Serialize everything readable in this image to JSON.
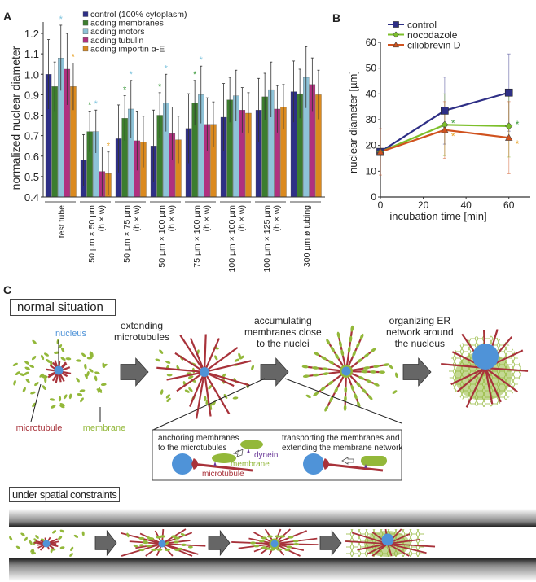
{
  "panels": {
    "a": "A",
    "b": "B",
    "c": "C"
  },
  "chart_data": [
    {
      "type": "bar",
      "panel": "A",
      "ylabel": "normalized nuclear diameter",
      "xlabel": "",
      "ylim": [
        0.4,
        1.25
      ],
      "yticks": [
        "0.4",
        "0.5",
        "0.6",
        "0.7",
        "0.8",
        "0.9",
        "1.0",
        "1.1",
        "1.2"
      ],
      "categories": [
        [
          "test tube"
        ],
        [
          "50 µm × 50 µm",
          "(h × w)"
        ],
        [
          "50 µm × 75 µm",
          "(h × w)"
        ],
        [
          "50 µm × 100 µm",
          "(h × w)"
        ],
        [
          "75 µm × 100 µm",
          "(h × w)"
        ],
        [
          "100 µm × 100 µm",
          "(h × w)"
        ],
        [
          "100 µm × 125 µm",
          "(h × w)"
        ],
        [
          "300 µm ø tubing"
        ]
      ],
      "series": [
        {
          "name": "control (100% cytoplasm)",
          "color": "#2e2f86",
          "values": [
            1.0,
            0.58,
            0.685,
            0.65,
            0.735,
            0.79,
            0.825,
            0.915
          ],
          "err": [
            0.17,
            0.125,
            0.165,
            0.175,
            0.17,
            0.165,
            0.155,
            0.15
          ],
          "sig": [
            false,
            false,
            false,
            false,
            false,
            false,
            false,
            false
          ]
        },
        {
          "name": "adding membranes",
          "color": "#3c7d2e",
          "values": [
            0.94,
            0.72,
            0.785,
            0.8,
            0.86,
            0.875,
            0.89,
            0.905
          ],
          "err": [
            0.12,
            0.1,
            0.11,
            0.11,
            0.11,
            0.11,
            0.115,
            0.12
          ],
          "sig": [
            false,
            true,
            true,
            true,
            true,
            false,
            false,
            false
          ]
        },
        {
          "name": "adding motors",
          "color": "#8ec3d8",
          "values": [
            1.08,
            0.72,
            0.83,
            0.86,
            0.9,
            0.895,
            0.925,
            0.985
          ],
          "err": [
            0.16,
            0.105,
            0.14,
            0.14,
            0.14,
            0.125,
            0.135,
            0.15
          ],
          "sig": [
            true,
            true,
            true,
            true,
            true,
            false,
            false,
            false
          ]
        },
        {
          "name": "adding tubulin",
          "color": "#b0307f",
          "values": [
            1.025,
            0.525,
            0.675,
            0.71,
            0.755,
            0.825,
            0.83,
            0.95
          ],
          "err": [
            0.175,
            0.12,
            0.145,
            0.13,
            0.13,
            0.11,
            0.115,
            0.13
          ],
          "sig": [
            false,
            false,
            false,
            false,
            false,
            false,
            false,
            false
          ]
        },
        {
          "name": "adding importin α-E",
          "color": "#db8a1e",
          "values": [
            0.94,
            0.515,
            0.67,
            0.68,
            0.755,
            0.81,
            0.84,
            0.9
          ],
          "err": [
            0.115,
            0.105,
            0.125,
            0.115,
            0.11,
            0.1,
            0.11,
            0.12
          ],
          "sig": [
            true,
            true,
            false,
            false,
            false,
            false,
            false,
            false
          ]
        }
      ],
      "sig_marker": "*",
      "legend": "top-left"
    },
    {
      "type": "line",
      "panel": "B",
      "xlabel": "incubation time [min]",
      "ylabel": "nuclear diameter [µm]",
      "xlim": [
        0,
        70
      ],
      "ylim": [
        0,
        60
      ],
      "xticks": [
        "0",
        "20",
        "40",
        "60"
      ],
      "yticks": [
        "0",
        "10",
        "20",
        "30",
        "40",
        "50",
        "60"
      ],
      "x": [
        0,
        30,
        60
      ],
      "series": [
        {
          "name": "control",
          "color": "#2e2f86",
          "marker": "square",
          "values": [
            17.5,
            33.5,
            40.5
          ],
          "err": [
            0,
            13,
            15
          ],
          "sig": [
            false,
            false,
            false
          ]
        },
        {
          "name": "nocodazole",
          "color": "#7cbf2a",
          "marker": "diamond",
          "values": [
            17.5,
            28.0,
            27.5
          ],
          "err": [
            0,
            12,
            12
          ],
          "sig": [
            false,
            true,
            true
          ],
          "sig_color": "#3c9a3c"
        },
        {
          "name": "ciliobrevin D",
          "color": "#d0521e",
          "marker": "triangle",
          "values": [
            17.5,
            26.0,
            23.0
          ],
          "err": [
            9,
            11,
            14
          ],
          "sig": [
            false,
            true,
            true
          ],
          "sig_color": "#e8a020"
        }
      ],
      "sig_marker": "*",
      "legend": "top"
    }
  ],
  "diagram": {
    "normal_title": "normal situation",
    "constraint_title": "under spatial constraints",
    "steps": [
      [
        "extending",
        "microtubules"
      ],
      [
        "accumulating",
        "membranes close",
        "to the nuclei"
      ],
      [
        "organizing ER",
        "network around",
        "the nucleus"
      ]
    ],
    "labels": {
      "nucleus": "nucleus",
      "microtubule": "microtubule",
      "membrane": "membrane"
    },
    "inset": {
      "left_text": [
        "anchoring membranes",
        "to the microtubules"
      ],
      "right_text": [
        "transporting the membranes and",
        "extending the membrane network"
      ],
      "dynein": "dynein",
      "membrane": "membrane",
      "microtubule": "microtubule"
    },
    "colors": {
      "nucleus": "#4f93d8",
      "microtubule": "#a8323a",
      "membrane": "#93b83a",
      "dynein": "#6b3a99",
      "arrow": "#666666"
    }
  }
}
